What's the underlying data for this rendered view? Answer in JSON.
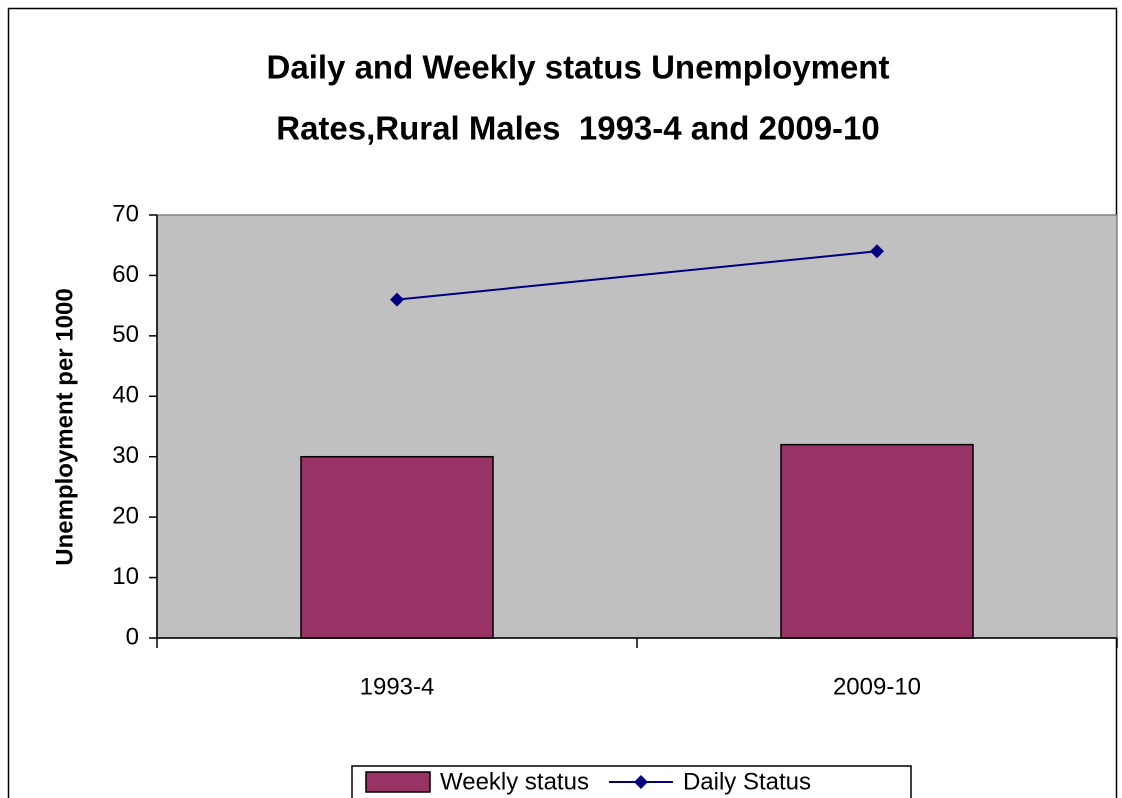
{
  "chart_data": {
    "type": "bar",
    "title": [
      "Daily and Weekly status Unemployment",
      "Rates,Rural Males  1993-4 and 2009-10"
    ],
    "y_label": "Unemployment per 1000",
    "categories": [
      "1993-4",
      "2009-10"
    ],
    "series": [
      {
        "name": "Weekly status",
        "type": "bar",
        "color": "#993366",
        "values": [
          30,
          32
        ]
      },
      {
        "name": "Daily Status",
        "type": "line",
        "color": "#000080",
        "values": [
          56,
          64
        ]
      }
    ],
    "ylim": [
      0,
      70
    ],
    "yticks": [
      0,
      10,
      20,
      30,
      40,
      50,
      60,
      70
    ],
    "plot_background": "#c0c0c0",
    "legend": "bottom"
  }
}
